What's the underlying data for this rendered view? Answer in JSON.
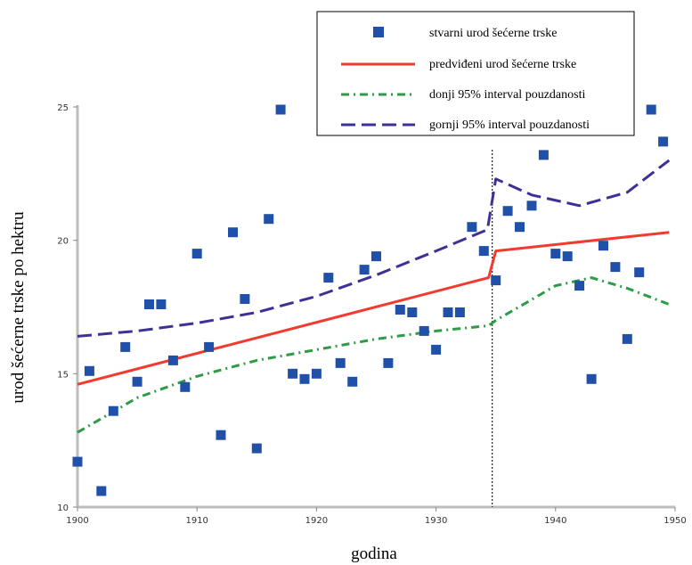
{
  "chart_data": {
    "type": "scatter",
    "xlabel": "godina",
    "ylabel": "urod šećerne trske po hektru",
    "xlim": [
      1900,
      1950
    ],
    "ylim": [
      10,
      25
    ],
    "x_ticks": [
      "1900",
      "1910",
      "1920",
      "1930",
      "1940",
      "1950"
    ],
    "y_ticks": [
      "10",
      "15",
      "20",
      "25"
    ],
    "breakpoint_year": 1934.7,
    "legend_position": "top-right",
    "series": [
      {
        "name": "stvarni urod šećerne trske",
        "kind": "points",
        "color": "#2150a8",
        "points": [
          [
            1900,
            11.7
          ],
          [
            1901,
            15.1
          ],
          [
            1902,
            10.6
          ],
          [
            1903,
            13.6
          ],
          [
            1904,
            16.0
          ],
          [
            1905,
            14.7
          ],
          [
            1906,
            17.6
          ],
          [
            1907,
            17.6
          ],
          [
            1908,
            15.5
          ],
          [
            1909,
            14.5
          ],
          [
            1910,
            19.5
          ],
          [
            1911,
            16.0
          ],
          [
            1912,
            12.7
          ],
          [
            1913,
            20.3
          ],
          [
            1914,
            17.8
          ],
          [
            1915,
            12.2
          ],
          [
            1916,
            20.8
          ],
          [
            1917,
            24.9
          ],
          [
            1918,
            15.0
          ],
          [
            1919,
            14.8
          ],
          [
            1920,
            15.0
          ],
          [
            1921,
            18.6
          ],
          [
            1922,
            15.4
          ],
          [
            1923,
            14.7
          ],
          [
            1924,
            18.9
          ],
          [
            1925,
            19.4
          ],
          [
            1926,
            15.4
          ],
          [
            1927,
            17.4
          ],
          [
            1928,
            17.3
          ],
          [
            1929,
            16.6
          ],
          [
            1930,
            15.9
          ],
          [
            1931,
            17.3
          ],
          [
            1932,
            17.3
          ],
          [
            1933,
            20.5
          ],
          [
            1934,
            19.6
          ],
          [
            1935,
            18.5
          ],
          [
            1936,
            21.1
          ],
          [
            1937,
            20.5
          ],
          [
            1938,
            21.3
          ],
          [
            1939,
            23.2
          ],
          [
            1940,
            19.5
          ],
          [
            1941,
            19.4
          ],
          [
            1942,
            18.3
          ],
          [
            1943,
            14.8
          ],
          [
            1944,
            19.8
          ],
          [
            1945,
            19.0
          ],
          [
            1946,
            16.3
          ],
          [
            1947,
            18.8
          ],
          [
            1948,
            24.9
          ],
          [
            1949,
            23.7
          ]
        ]
      },
      {
        "name": "predviđeni urod šećerne trske",
        "kind": "solid",
        "color": "#f23a2e",
        "points": [
          [
            1900,
            14.6
          ],
          [
            1934.4,
            18.6
          ],
          [
            1935,
            19.6
          ],
          [
            1949.5,
            20.3
          ]
        ]
      },
      {
        "name": "donji 95% interval pouzdanosti",
        "kind": "dashdot",
        "color": "#2e9b46",
        "points": [
          [
            1900,
            12.8
          ],
          [
            1905,
            14.1
          ],
          [
            1910,
            14.9
          ],
          [
            1915,
            15.5
          ],
          [
            1920,
            15.9
          ],
          [
            1925,
            16.3
          ],
          [
            1930,
            16.6
          ],
          [
            1934.4,
            16.8
          ],
          [
            1935,
            17.0
          ],
          [
            1940,
            18.3
          ],
          [
            1943,
            18.6
          ],
          [
            1946,
            18.2
          ],
          [
            1949.5,
            17.6
          ]
        ]
      },
      {
        "name": "gornji 95% interval pouzdanosti",
        "kind": "dashed",
        "color": "#3d3198",
        "points": [
          [
            1900,
            16.4
          ],
          [
            1905,
            16.6
          ],
          [
            1910,
            16.9
          ],
          [
            1915,
            17.3
          ],
          [
            1920,
            17.9
          ],
          [
            1925,
            18.7
          ],
          [
            1930,
            19.6
          ],
          [
            1934.3,
            20.4
          ],
          [
            1935,
            22.3
          ],
          [
            1938,
            21.7
          ],
          [
            1942,
            21.3
          ],
          [
            1946,
            21.8
          ],
          [
            1949.5,
            23.0
          ]
        ]
      }
    ]
  }
}
